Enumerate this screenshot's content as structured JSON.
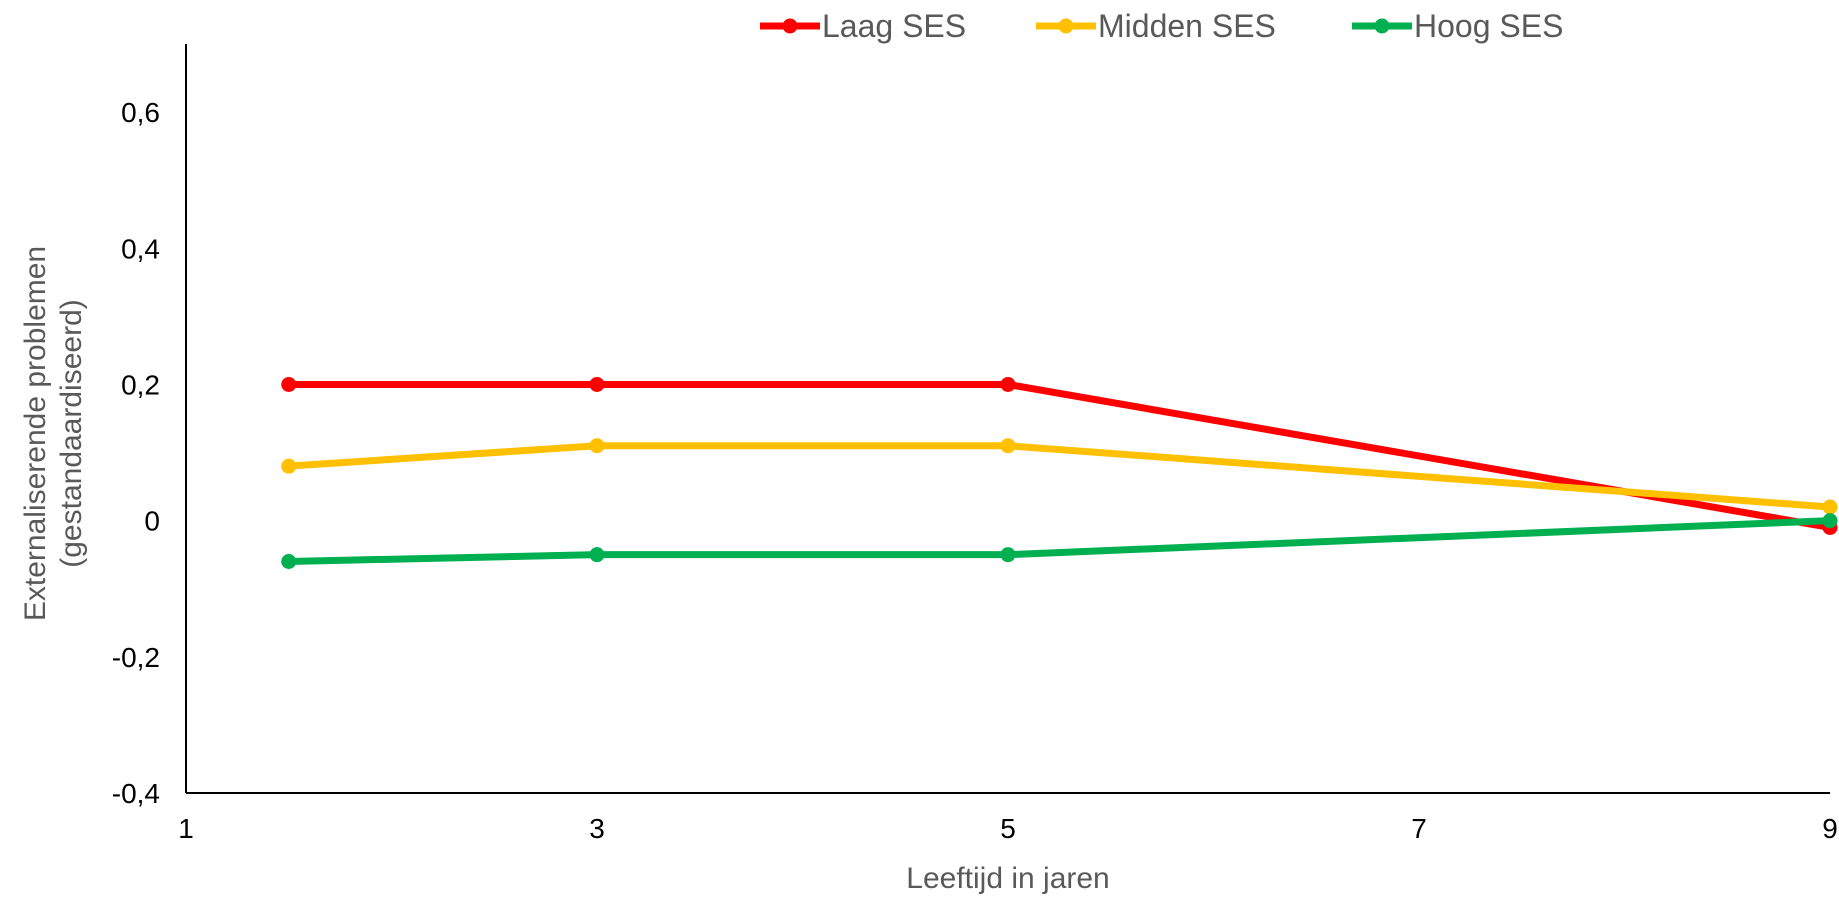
{
  "chart_data": {
    "type": "line",
    "title": "",
    "xlabel": "Leeftijd in jaren",
    "ylabel_lines": [
      "Externaliserende problemen",
      "(gestandaardiseerd)"
    ],
    "xlim": [
      1,
      9
    ],
    "ylim": [
      -0.4,
      0.7
    ],
    "x_ticks": [
      1,
      3,
      5,
      7,
      9
    ],
    "x_tick_labels": [
      "1",
      "3",
      "5",
      "7",
      "9"
    ],
    "y_ticks": [
      -0.4,
      -0.2,
      0,
      0.2,
      0.4,
      0.6
    ],
    "y_tick_labels": [
      "-0,4",
      "-0,2",
      "0",
      "0,2",
      "0,4",
      "0,6"
    ],
    "grid": false,
    "legend_position": "top",
    "x": [
      1.5,
      3,
      5,
      9
    ],
    "series": [
      {
        "name": "Laag SES",
        "color": "#FF0000",
        "values": [
          0.2,
          0.2,
          0.2,
          -0.01
        ]
      },
      {
        "name": "Midden SES",
        "color": "#FFC000",
        "values": [
          0.08,
          0.11,
          0.11,
          0.02
        ]
      },
      {
        "name": "Hoog SES",
        "color": "#00B050",
        "values": [
          -0.06,
          -0.05,
          -0.05,
          0.0
        ]
      }
    ]
  }
}
